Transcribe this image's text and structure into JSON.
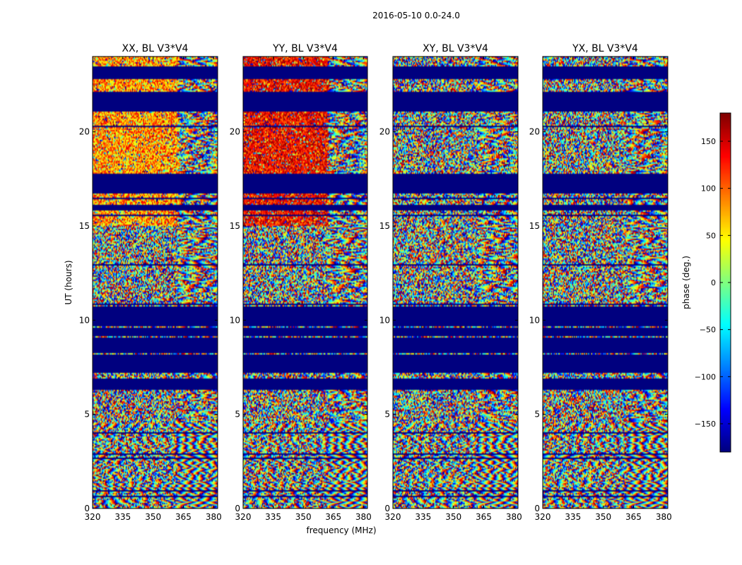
{
  "chart_data": {
    "type": "heatmap",
    "suptitle": "2016-05-10 0.0-24.0",
    "xlabel": "frequency (MHz)",
    "ylabel": "UT (hours)",
    "xlim": [
      320,
      382
    ],
    "ylim": [
      0,
      24
    ],
    "xticks": [
      320,
      335,
      350,
      365,
      380
    ],
    "yticks": [
      0,
      5,
      10,
      15,
      20
    ],
    "panels": [
      {
        "title": "XX, BL V3*V4",
        "mode": "low_phase"
      },
      {
        "title": "YY, BL V3*V4",
        "mode": "high_phase"
      },
      {
        "title": "XY, BL V3*V4",
        "mode": "noise"
      },
      {
        "title": "YX, BL V3*V4",
        "mode": "noise"
      }
    ],
    "colorbar": {
      "label": "phase (deg.)",
      "range": [
        -180,
        180
      ],
      "ticks": [
        150,
        100,
        50,
        0,
        -50,
        -100,
        -150
      ],
      "tick_labels": [
        "150",
        "100",
        "50",
        "0",
        "−50",
        "−100",
        "−150"
      ],
      "colormap": "jet"
    },
    "flagged_ut_ranges": [
      [
        6.3,
        6.9
      ],
      [
        7.1,
        10.7
      ],
      [
        15.8,
        16.1
      ],
      [
        16.8,
        17.8
      ],
      [
        21.1,
        22.1
      ],
      [
        22.8,
        23.5
      ]
    ],
    "flag_color": "#00007f"
  }
}
